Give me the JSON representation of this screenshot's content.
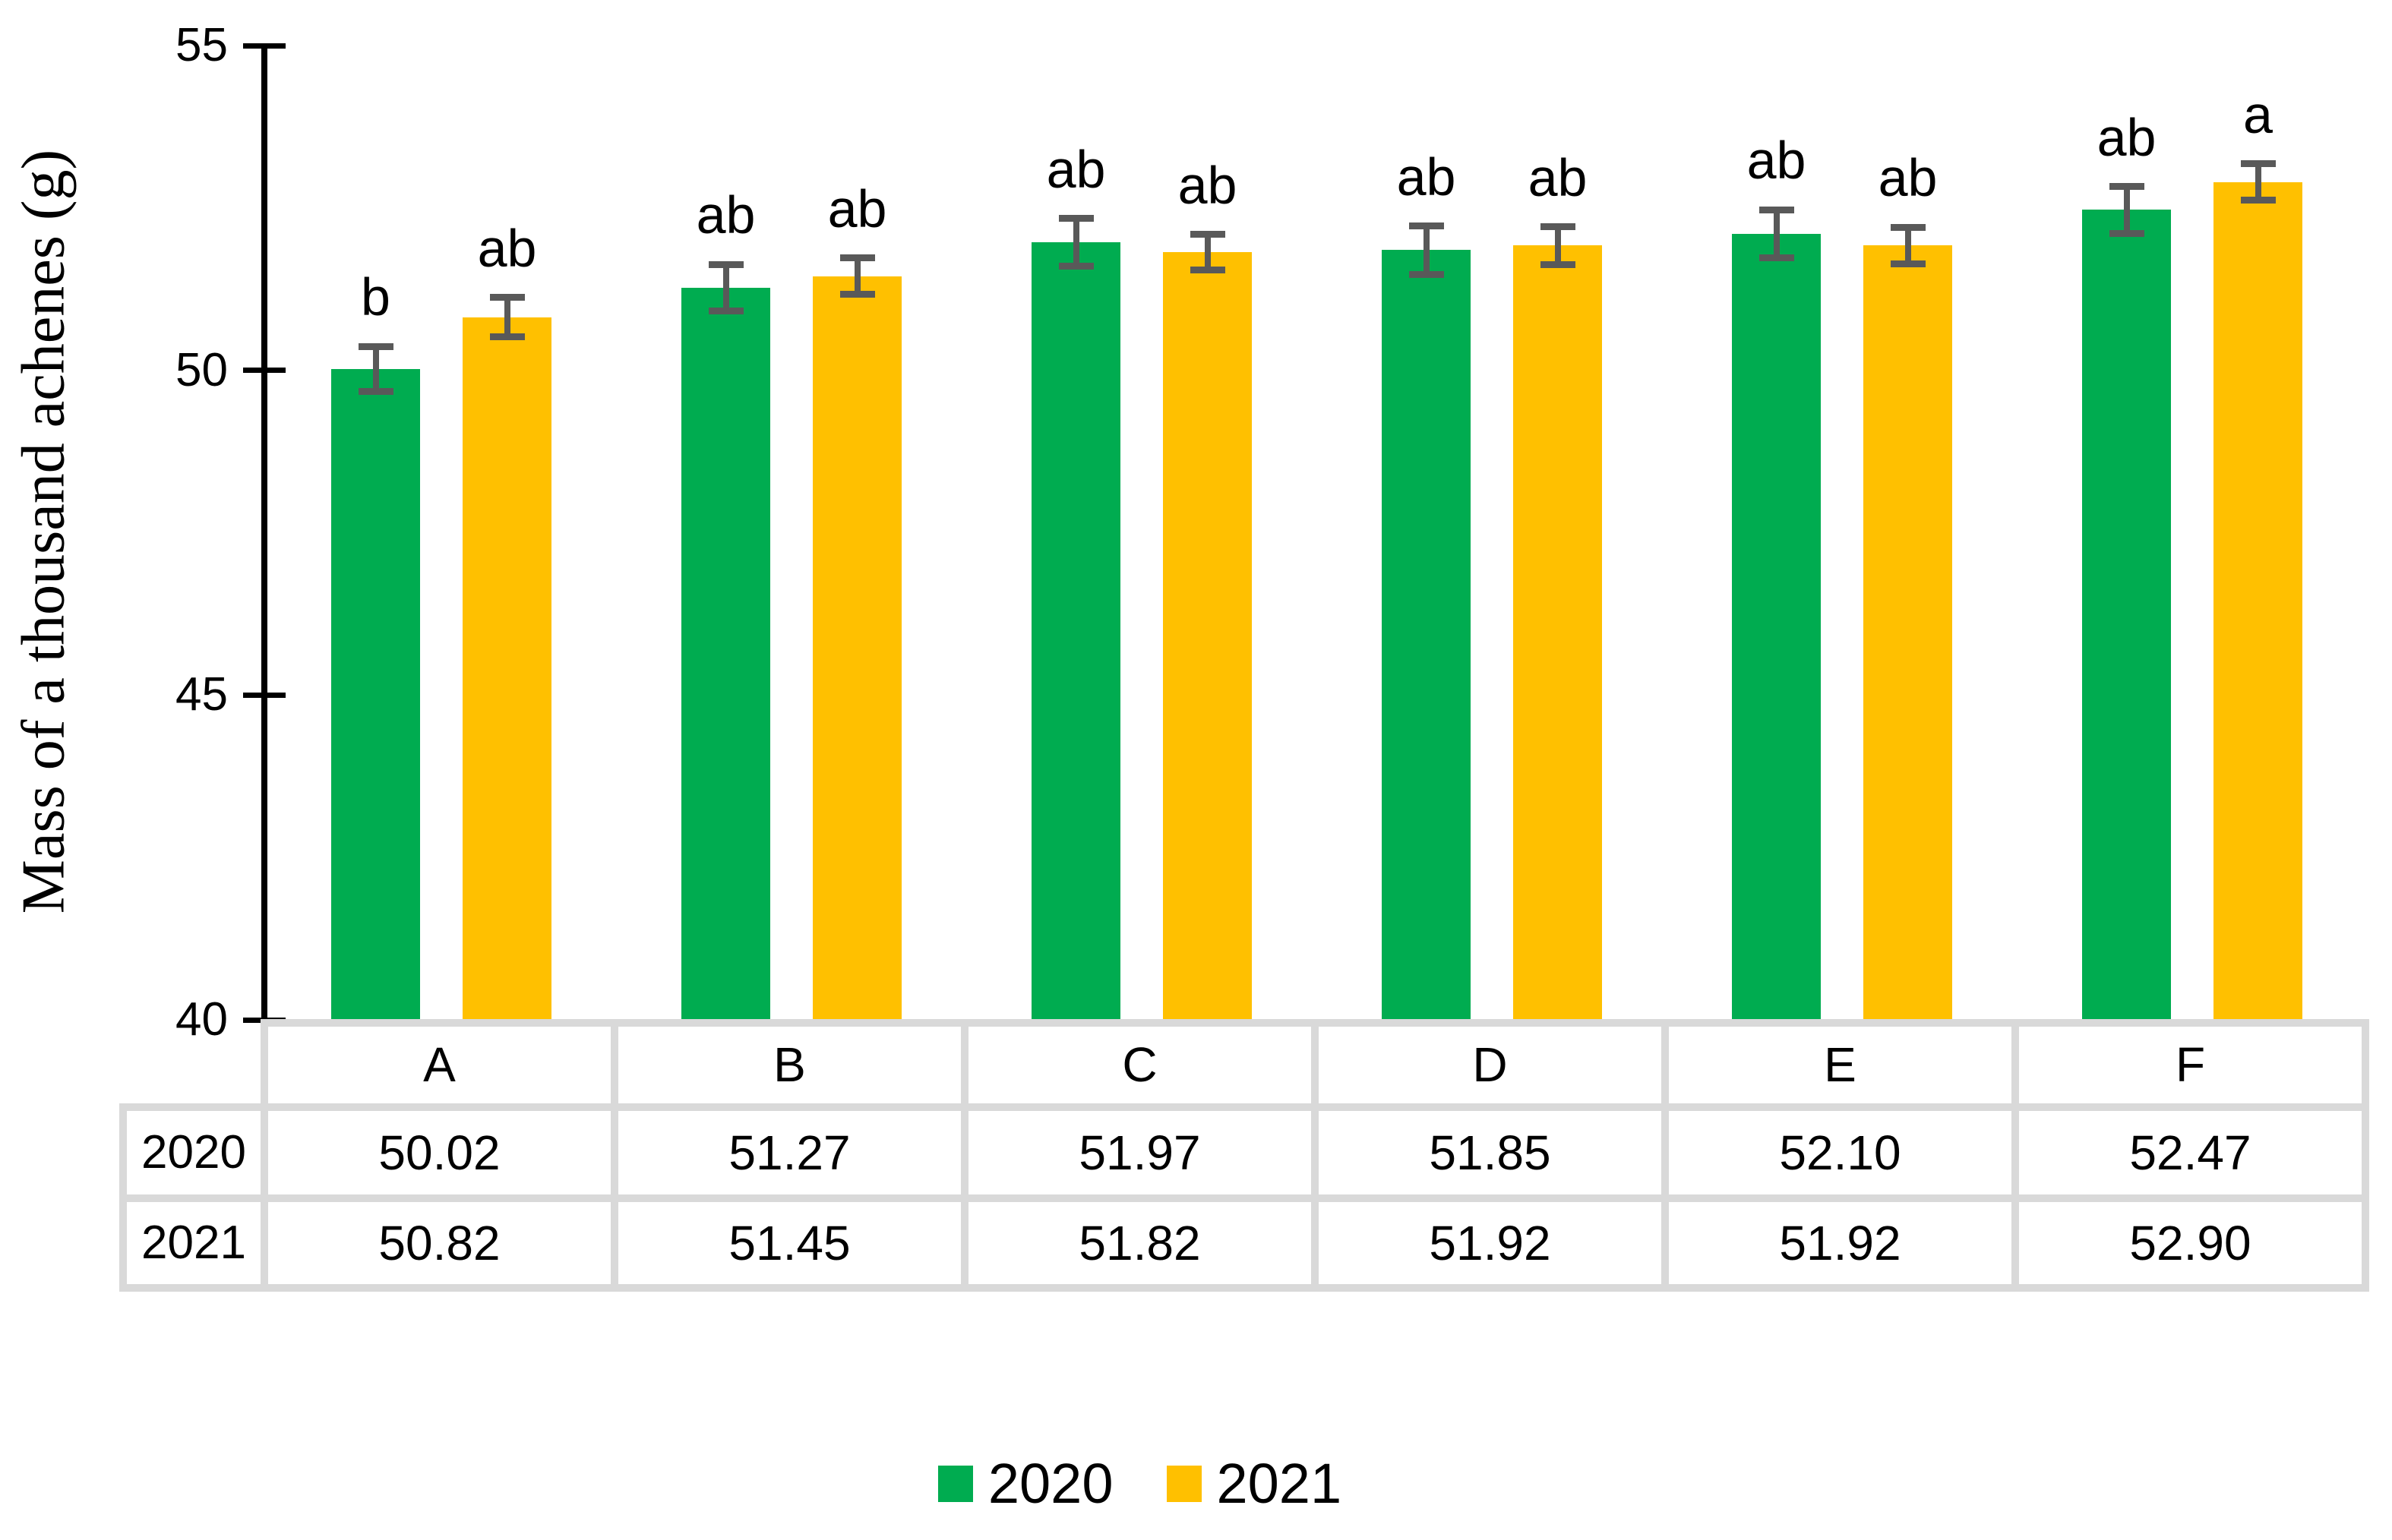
{
  "chart_data": {
    "type": "bar",
    "title": "",
    "ylabel": "Mass of a thousand achenes (g)",
    "xlabel": "",
    "ylim": [
      40,
      55
    ],
    "yticks": [
      55,
      50,
      45,
      40
    ],
    "grid": false,
    "legend_position": "bottom-center",
    "categories": [
      "A",
      "B",
      "C",
      "D",
      "E",
      "F"
    ],
    "series": [
      {
        "name": "2020",
        "color": "#00AC50",
        "values": [
          50.02,
          51.27,
          51.97,
          51.85,
          52.1,
          52.47
        ],
        "display_values": [
          "50.02",
          "51.27",
          "51.97",
          "51.85",
          "52.10",
          "52.47"
        ],
        "errors": [
          0.35,
          0.36,
          0.37,
          0.37,
          0.37,
          0.36
        ],
        "sig_letters": [
          "b",
          "ab",
          "ab",
          "ab",
          "ab",
          "ab"
        ]
      },
      {
        "name": "2021",
        "color": "#FFC000",
        "values": [
          50.82,
          51.45,
          51.82,
          51.92,
          51.92,
          52.9
        ],
        "display_values": [
          "50.82",
          "51.45",
          "51.82",
          "51.92",
          "51.92",
          "52.90"
        ],
        "errors": [
          0.3,
          0.28,
          0.27,
          0.29,
          0.28,
          0.28
        ],
        "sig_letters": [
          "ab",
          "ab",
          "ab",
          "ab",
          "ab",
          "a"
        ]
      }
    ],
    "data_table_row_labels": [
      "2020",
      "2021"
    ],
    "colors": {
      "error_bar": "#595959",
      "table_border": "#D9D9D9",
      "axis": "#000000",
      "text": "#000000",
      "background": "#FFFFFF"
    }
  }
}
